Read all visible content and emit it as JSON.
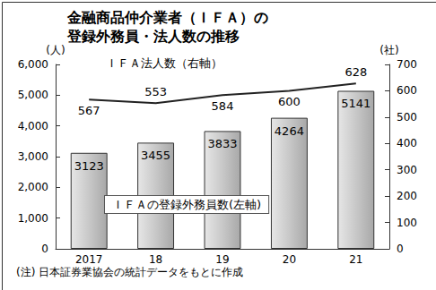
{
  "chart_data": {
    "type": "bar",
    "title": "金融商品仲介業者（ＩＦＡ）の\n登録外務員・法人数の推移",
    "categories": [
      "2017",
      "18",
      "19",
      "20",
      "21"
    ],
    "series": [
      {
        "name": "ＩＦＡの登録外務員数(左軸)",
        "type": "bar",
        "axis": "y",
        "color": "#c8c8c8",
        "values": [
          3123,
          3455,
          3833,
          4264,
          5141
        ]
      },
      {
        "name": "ＩＦＡ法人数（右軸）",
        "type": "line",
        "axis": "y2",
        "color": "#222222",
        "values": [
          567,
          553,
          584,
          600,
          628
        ]
      }
    ],
    "ylabel": "(人)",
    "y2label": "(社)",
    "ylim": [
      0,
      6000
    ],
    "yticks": [
      0,
      1000,
      2000,
      3000,
      4000,
      5000,
      6000
    ],
    "y2lim": [
      0,
      700
    ],
    "y2ticks": [
      0,
      100,
      200,
      300,
      400,
      500,
      600,
      700
    ],
    "note": "(注) 日本証券業協会の統計データをもとに作成",
    "data_labels": true,
    "grid": false
  }
}
